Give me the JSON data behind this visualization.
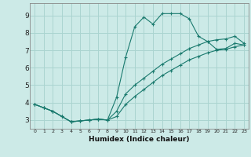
{
  "xlabel": "Humidex (Indice chaleur)",
  "bg_color": "#cceae7",
  "grid_color": "#aad4d0",
  "line_color": "#1a7a6e",
  "xlim": [
    -0.5,
    23.5
  ],
  "ylim": [
    2.5,
    9.7
  ],
  "xticks": [
    0,
    1,
    2,
    3,
    4,
    5,
    6,
    7,
    8,
    9,
    10,
    11,
    12,
    13,
    14,
    15,
    16,
    17,
    18,
    19,
    20,
    21,
    22,
    23
  ],
  "yticks": [
    3,
    4,
    5,
    6,
    7,
    8,
    9
  ],
  "line1_x": [
    0,
    1,
    2,
    3,
    4,
    5,
    6,
    7,
    8,
    9,
    10,
    11,
    12,
    13,
    14,
    15,
    16,
    17,
    18,
    19,
    20,
    21,
    22,
    23
  ],
  "line1_y": [
    3.9,
    3.7,
    3.5,
    3.2,
    2.9,
    2.95,
    3.0,
    3.05,
    3.0,
    4.3,
    6.6,
    8.35,
    8.9,
    8.5,
    9.1,
    9.1,
    9.1,
    8.8,
    7.8,
    7.5,
    7.05,
    7.1,
    7.4,
    7.3
  ],
  "line2_x": [
    0,
    1,
    2,
    3,
    4,
    5,
    6,
    7,
    8,
    9,
    10,
    11,
    12,
    13,
    14,
    15,
    16,
    17,
    18,
    19,
    20,
    21,
    22,
    23
  ],
  "line2_y": [
    3.9,
    3.7,
    3.5,
    3.2,
    2.9,
    2.95,
    3.0,
    3.05,
    3.0,
    3.5,
    4.5,
    5.0,
    5.4,
    5.8,
    6.2,
    6.5,
    6.8,
    7.1,
    7.3,
    7.5,
    7.6,
    7.65,
    7.8,
    7.4
  ],
  "line3_x": [
    0,
    1,
    2,
    3,
    4,
    5,
    6,
    7,
    8,
    9,
    10,
    11,
    12,
    13,
    14,
    15,
    16,
    17,
    18,
    19,
    20,
    21,
    22,
    23
  ],
  "line3_y": [
    3.9,
    3.7,
    3.5,
    3.2,
    2.9,
    2.95,
    3.0,
    3.05,
    3.0,
    3.2,
    3.9,
    4.35,
    4.75,
    5.15,
    5.55,
    5.85,
    6.15,
    6.45,
    6.65,
    6.85,
    7.0,
    7.05,
    7.2,
    7.3
  ]
}
